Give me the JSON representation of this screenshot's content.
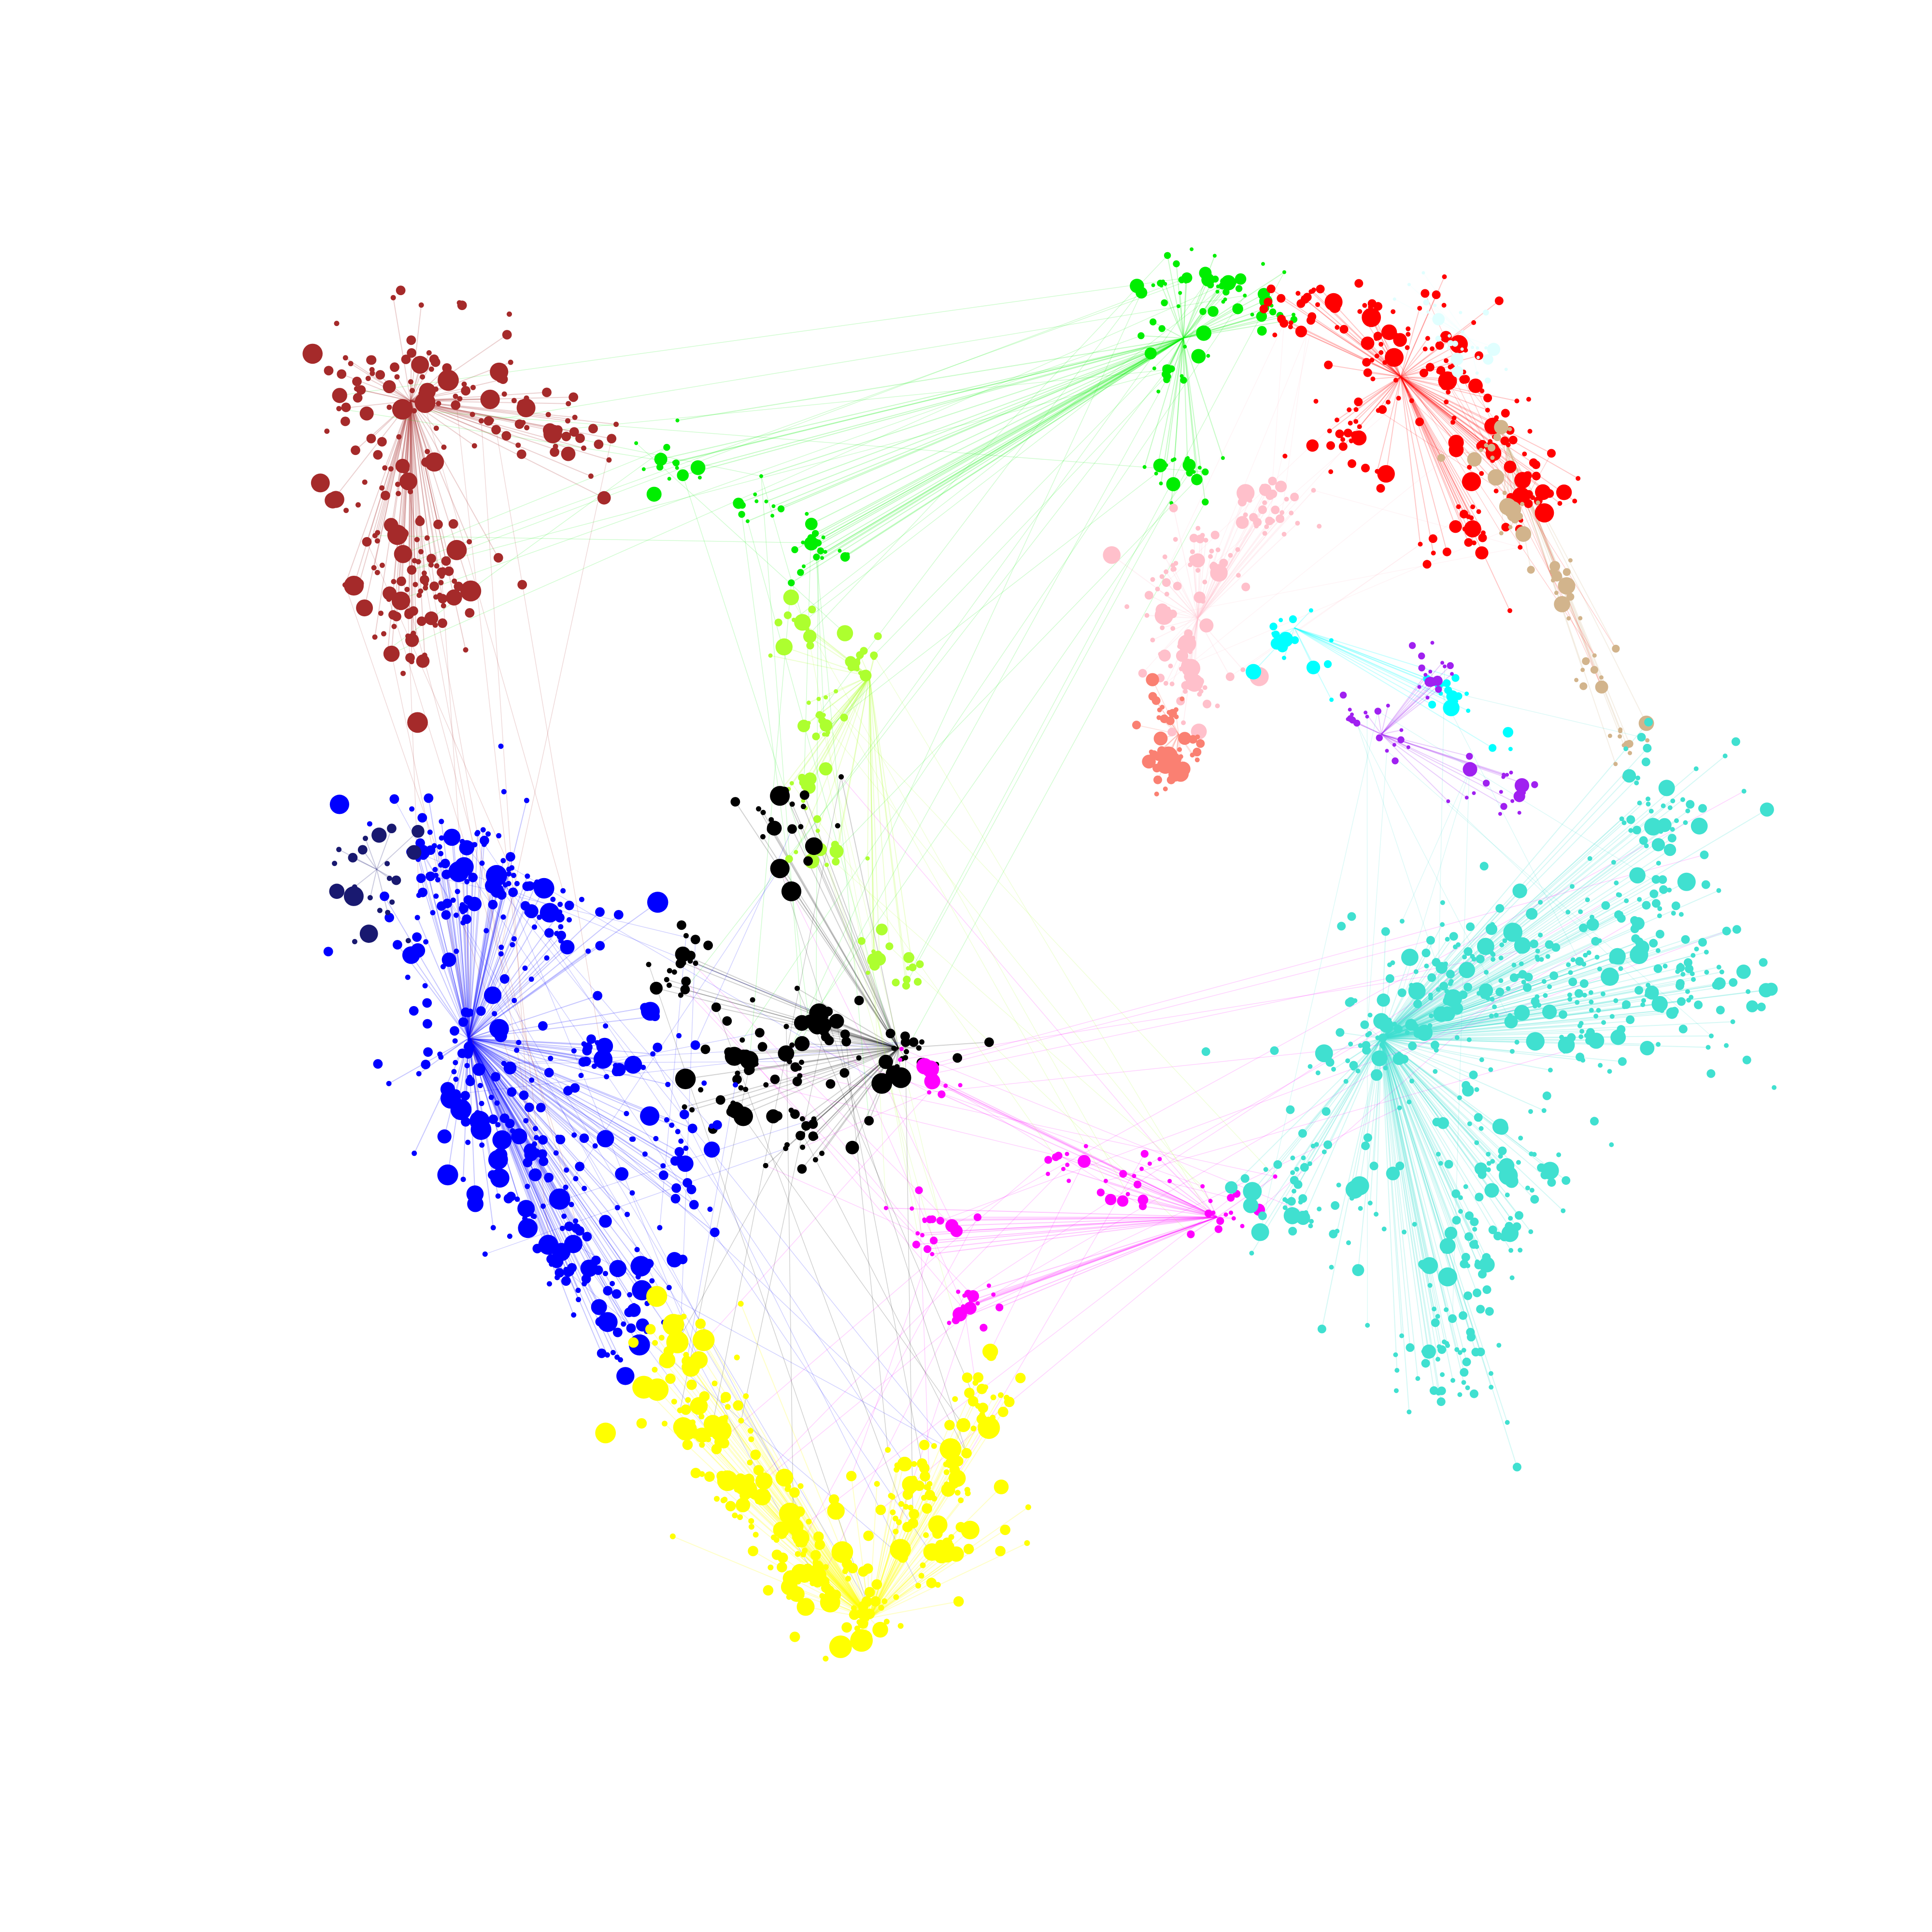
{
  "figure": {
    "kind": "network-graph",
    "background": "#ffffff",
    "labels_shown": false
  },
  "clusters": [
    {
      "id": "brown",
      "color": "#a52a2a"
    },
    {
      "id": "green",
      "color": "#00ee00"
    },
    {
      "id": "red",
      "color": "#ff0000"
    },
    {
      "id": "lightcyan",
      "color": "#e0ffff"
    },
    {
      "id": "tan",
      "color": "#d2b48c"
    },
    {
      "id": "pink",
      "color": "#ffc0cb"
    },
    {
      "id": "salmon",
      "color": "#fa8072"
    },
    {
      "id": "cyan",
      "color": "#00ffff"
    },
    {
      "id": "purple",
      "color": "#a020f0"
    },
    {
      "id": "greenyellow",
      "color": "#adff2f"
    },
    {
      "id": "black",
      "color": "#000000"
    },
    {
      "id": "magenta",
      "color": "#ff00ff"
    },
    {
      "id": "turquoise",
      "color": "#40e0d0"
    },
    {
      "id": "blue",
      "color": "#0000ff"
    },
    {
      "id": "midnightblue",
      "color": "#191970"
    },
    {
      "id": "yellow",
      "color": "#ffff00"
    }
  ]
}
